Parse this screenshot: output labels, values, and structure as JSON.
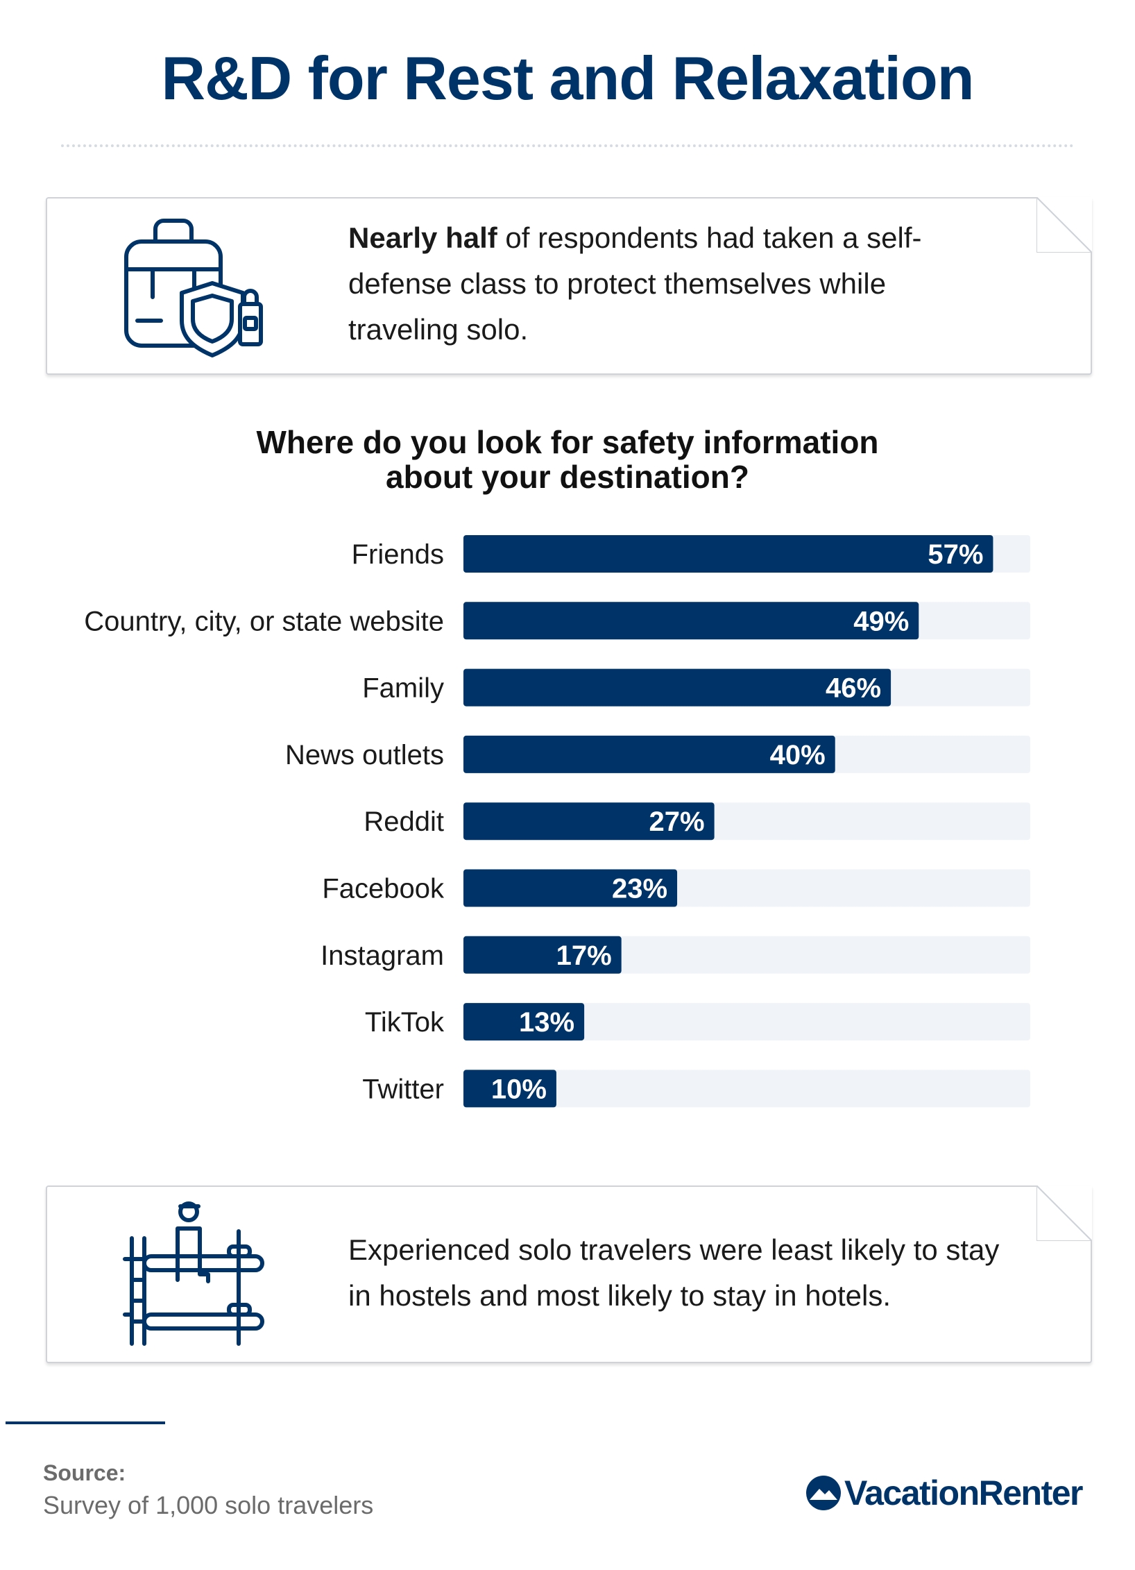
{
  "title": "R&D for Rest and Relaxation",
  "card1": {
    "bold": "Nearly half",
    "rest": " of respondents had taken a self-defense class to protect themselves while traveling solo.",
    "icon": "backpack-shield-icon"
  },
  "chart_data": {
    "type": "bar",
    "orientation": "horizontal",
    "title": "Where do you look for safety information about your destination?",
    "categories": [
      "Friends",
      "Country, city, or state website",
      "Family",
      "News outlets",
      "Reddit",
      "Facebook",
      "Instagram",
      "TikTok",
      "Twitter"
    ],
    "values": [
      57,
      49,
      46,
      40,
      27,
      23,
      17,
      13,
      10
    ],
    "value_labels": [
      "57%",
      "49%",
      "46%",
      "40%",
      "27%",
      "23%",
      "17%",
      "13%",
      "10%"
    ],
    "xlim": [
      0,
      61
    ],
    "grid": false,
    "legend": "none",
    "colors": {
      "bar": "#003469",
      "track": "#f0f3f7",
      "label": "#ffffff"
    }
  },
  "card2": {
    "text": "Experienced solo travelers were least likely to stay in hostels and most likely to stay in hotels.",
    "icon": "bunk-bed-traveler-icon"
  },
  "source": {
    "label": "Source:",
    "text": "Survey of 1,000 solo travelers"
  },
  "brand": {
    "name": "VacationRenter",
    "icon": "vacationrenter-logo-icon"
  },
  "colors": {
    "accent": "#003469",
    "card_border": "#cfd3d8"
  }
}
